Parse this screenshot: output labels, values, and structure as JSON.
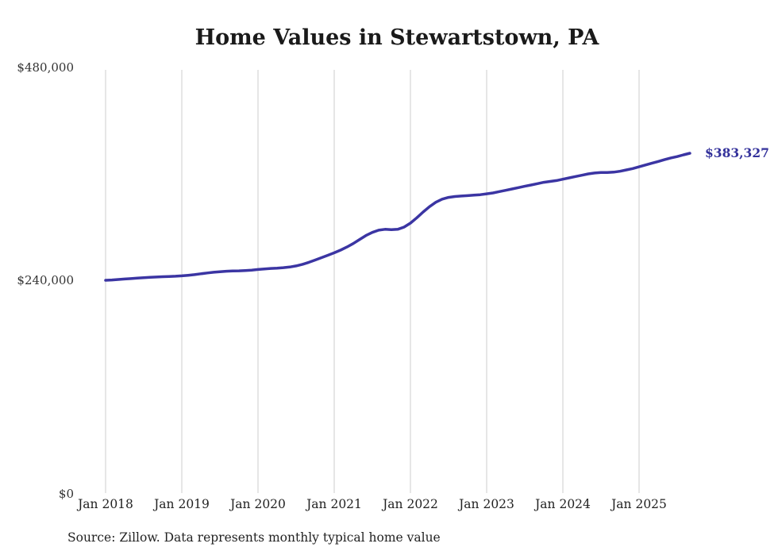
{
  "title": "Home Values in Stewartstown, PA",
  "source_note": "Source: Zillow. Data represents monthly typical home value",
  "end_label": "$383,327",
  "colors": {
    "line": "#3b35a3",
    "end_label": "#33319b",
    "grid": "#cccccc",
    "title_text": "#1a1a1a",
    "axis_text": "#333333"
  },
  "chart_data": {
    "type": "line",
    "title": "Home Values in Stewartstown, PA",
    "xlabel": "",
    "ylabel": "",
    "ylim": [
      0,
      480000
    ],
    "y_ticks": [
      0,
      240000,
      480000
    ],
    "y_tick_labels": [
      "$0",
      "$240,000",
      "$480,000"
    ],
    "x_tick_labels": [
      "Jan 2018",
      "Jan 2019",
      "Jan 2020",
      "Jan 2021",
      "Jan 2022",
      "Jan 2023",
      "Jan 2024",
      "Jan 2025"
    ],
    "x_start": "2018-01",
    "x_end": "2025-09",
    "grid": "vertical-only",
    "legend": "none",
    "end_value": 383327,
    "series": [
      {
        "name": "Monthly typical home value",
        "values": [
          240000,
          240400,
          240900,
          241400,
          241900,
          242400,
          242900,
          243300,
          243700,
          244000,
          244300,
          244600,
          245000,
          245600,
          246400,
          247300,
          248200,
          249000,
          249700,
          250200,
          250500,
          250700,
          251000,
          251500,
          252200,
          252800,
          253300,
          253700,
          254200,
          255000,
          256200,
          258000,
          260200,
          262800,
          265500,
          268200,
          271000,
          274000,
          277500,
          281500,
          286000,
          290500,
          294000,
          296500,
          297500,
          297000,
          297500,
          300000,
          304500,
          310500,
          317000,
          323000,
          328000,
          331500,
          333500,
          334500,
          335000,
          335500,
          336000,
          336500,
          337500,
          338500,
          340000,
          341500,
          343000,
          344500,
          346000,
          347500,
          349000,
          350500,
          351500,
          352500,
          354000,
          355500,
          357000,
          358500,
          360000,
          361000,
          361500,
          361500,
          362000,
          363000,
          364500,
          366000,
          368000,
          370000,
          372000,
          374000,
          376000,
          378000,
          379500,
          381500,
          383327
        ]
      }
    ]
  }
}
